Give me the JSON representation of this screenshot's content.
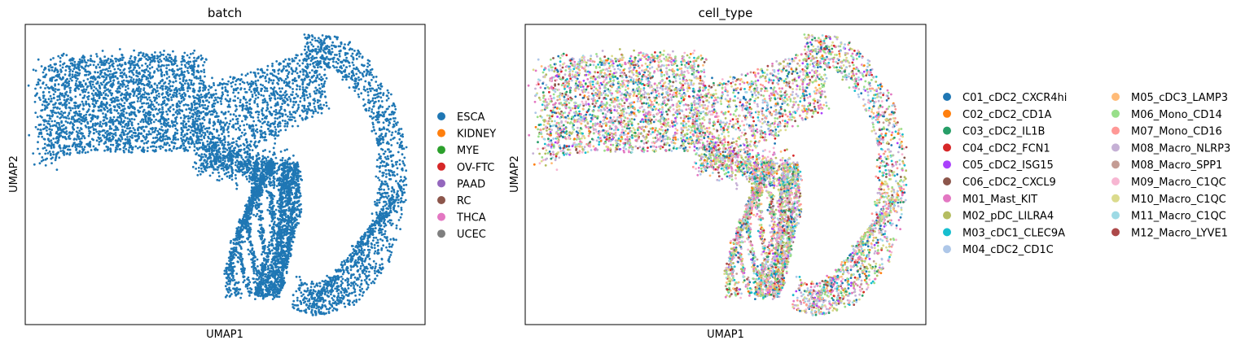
{
  "chart_data": [
    {
      "type": "scatter",
      "title": "batch",
      "xlabel": "UMAP1",
      "ylabel": "UMAP2",
      "xticks": [],
      "yticks": [],
      "grid": false,
      "legend_position": "right",
      "series": [
        {
          "name": "ESCA",
          "color": "#1f77b4"
        },
        {
          "name": "KIDNEY",
          "color": "#ff7f0e"
        },
        {
          "name": "MYE",
          "color": "#2ca02c"
        },
        {
          "name": "OV-FTC",
          "color": "#d62728"
        },
        {
          "name": "PAAD",
          "color": "#9467bd"
        },
        {
          "name": "RC",
          "color": "#8c564b"
        },
        {
          "name": "THCA",
          "color": "#e377c2"
        },
        {
          "name": "UCEC",
          "color": "#7f7f7f"
        }
      ],
      "visible_point_colors": [
        "#1f77b4"
      ]
    },
    {
      "type": "scatter",
      "title": "cell_type",
      "xlabel": "UMAP1",
      "ylabel": "UMAP2",
      "xticks": [],
      "yticks": [],
      "grid": false,
      "legend_position": "right",
      "legend_columns": 2,
      "series": [
        {
          "name": "C01_cDC2_CXCR4hi",
          "color": "#1f77b4"
        },
        {
          "name": "C02_cDC2_CD1A",
          "color": "#ff7f0e"
        },
        {
          "name": "C03_cDC2_IL1B",
          "color": "#279e68"
        },
        {
          "name": "C04_cDC2_FCN1",
          "color": "#d62728"
        },
        {
          "name": "C05_cDC2_ISG15",
          "color": "#aa40fc"
        },
        {
          "name": "C06_cDC2_CXCL9",
          "color": "#8c564b"
        },
        {
          "name": "M01_Mast_KIT",
          "color": "#e377c2"
        },
        {
          "name": "M02_pDC_LILRA4",
          "color": "#b5bd61"
        },
        {
          "name": "M03_cDC1_CLEC9A",
          "color": "#17becf"
        },
        {
          "name": "M04_cDC2_CD1C",
          "color": "#aec7e8"
        },
        {
          "name": "M05_cDC3_LAMP3",
          "color": "#ffbb78"
        },
        {
          "name": "M06_Mono_CD14",
          "color": "#98df8a"
        },
        {
          "name": "M07_Mono_CD16",
          "color": "#ff9896"
        },
        {
          "name": "M08_Macro_NLRP3",
          "color": "#c5b0d5"
        },
        {
          "name": "M08_Macro_SPP1",
          "color": "#c49c94"
        },
        {
          "name": "M09_Macro_C1QC",
          "color": "#f7b6d2"
        },
        {
          "name": "M10_Macro_C1QC",
          "color": "#dbdb8d"
        },
        {
          "name": "M11_Macro_C1QC",
          "color": "#9edae5"
        },
        {
          "name": "M12_Macro_LYVE1",
          "color": "#ad494a"
        }
      ]
    }
  ]
}
